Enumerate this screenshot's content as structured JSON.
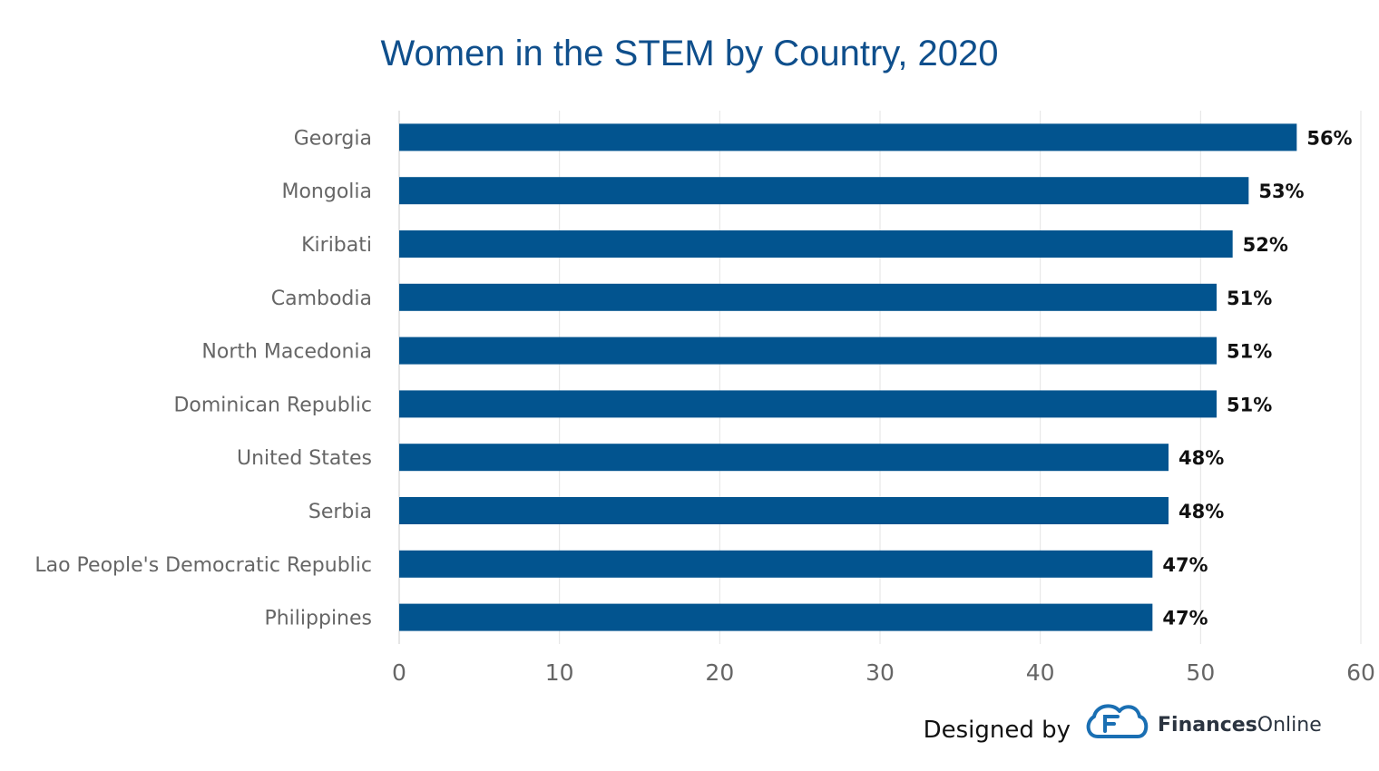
{
  "chart_data": {
    "type": "bar",
    "orientation": "horizontal",
    "title": "Women in the STEM by Country, 2020",
    "categories": [
      "Georgia",
      "Mongolia",
      "Kiribati",
      "Cambodia",
      "North Macedonia",
      "Dominican Republic",
      "United States",
      "Serbia",
      "Lao People's Democratic Republic",
      "Philippines"
    ],
    "values": [
      56,
      53,
      52,
      51,
      51,
      51,
      48,
      48,
      47,
      47
    ],
    "data_labels": [
      "56%",
      "53%",
      "52%",
      "51%",
      "51%",
      "51%",
      "48%",
      "48%",
      "47%",
      "47%"
    ],
    "xlim": [
      0,
      60
    ],
    "x_ticks": [
      0,
      10,
      20,
      30,
      40,
      50,
      60
    ],
    "xlabel": "",
    "ylabel": "",
    "grid": true,
    "bar_color": "#02548f"
  },
  "credit": {
    "prefix": "Designed by",
    "brand_bold": "Finances",
    "brand_light": "Online",
    "logo_color": "#1a6fb3"
  }
}
